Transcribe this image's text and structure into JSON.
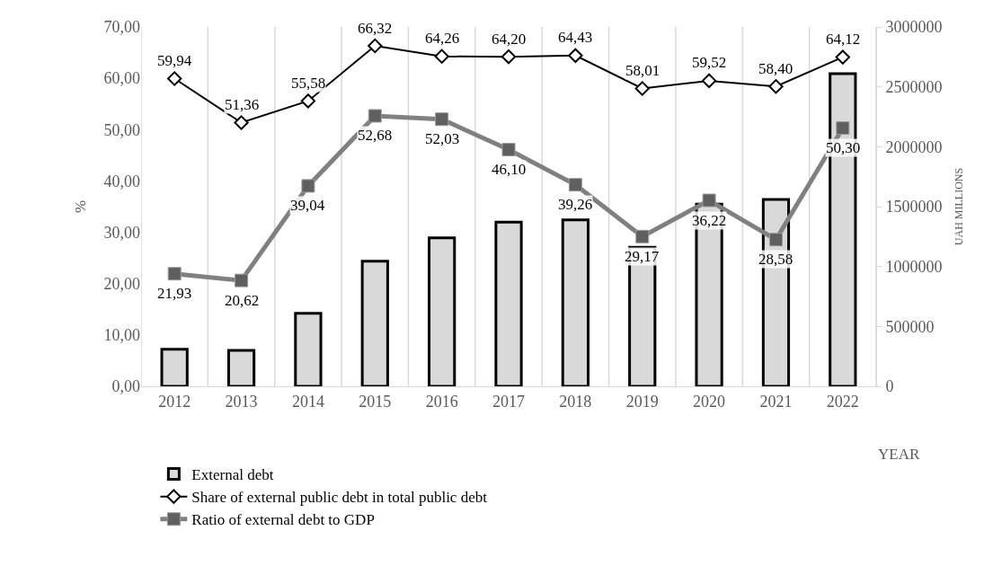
{
  "chart_data": {
    "type": "bar",
    "xlabel": "YEAR",
    "ylabel": "%",
    "y2label": "UAH MILLIONS",
    "categories": [
      "2012",
      "2013",
      "2014",
      "2015",
      "2016",
      "2017",
      "2018",
      "2019",
      "2020",
      "2021",
      "2022"
    ],
    "series": [
      {
        "name": "External debt",
        "axis": "y2",
        "color": "#d9d9d9",
        "values": [
          310000,
          300000,
          610000,
          1045000,
          1240000,
          1370000,
          1390000,
          1160000,
          1520000,
          1560000,
          2610000
        ]
      },
      {
        "name": "Share of external public debt in total public debt",
        "type": "line",
        "axis": "y",
        "color": "#000000",
        "marker": "diamond",
        "values": [
          59.94,
          51.36,
          55.58,
          66.32,
          64.26,
          64.2,
          64.43,
          58.01,
          59.52,
          58.4,
          64.12
        ],
        "value_labels": [
          "59,94",
          "51,36",
          "55,58",
          "66,32",
          "64,26",
          "64,20",
          "64,43",
          "58,01",
          "59,52",
          "58,40",
          "64,12"
        ]
      },
      {
        "name": "Ratio of external debt to GDP",
        "type": "line",
        "axis": "y",
        "color": "#808080",
        "marker": "square",
        "values": [
          21.93,
          20.62,
          39.04,
          52.68,
          52.03,
          46.1,
          39.26,
          29.17,
          36.22,
          28.58,
          50.3
        ],
        "value_labels": [
          "21,93",
          "20,62",
          "39,04",
          "52,68",
          "52,03",
          "46,10",
          "39,26",
          "29,17",
          "36,22",
          "28,58",
          "50,30"
        ]
      }
    ],
    "ylim": [
      0,
      70
    ],
    "yticks": [
      {
        "value": 0,
        "label": "0,00"
      },
      {
        "value": 10,
        "label": "10,00"
      },
      {
        "value": 20,
        "label": "20,00"
      },
      {
        "value": 30,
        "label": "30,00"
      },
      {
        "value": 40,
        "label": "40,00"
      },
      {
        "value": 50,
        "label": "50,00"
      },
      {
        "value": 60,
        "label": "60,00"
      },
      {
        "value": 70,
        "label": "70,00"
      }
    ],
    "y2lim": [
      0,
      3000000
    ],
    "y2ticks": [
      0,
      500000,
      1000000,
      1500000,
      2000000,
      2500000,
      3000000
    ],
    "grid": "x",
    "legend": "bottom"
  }
}
